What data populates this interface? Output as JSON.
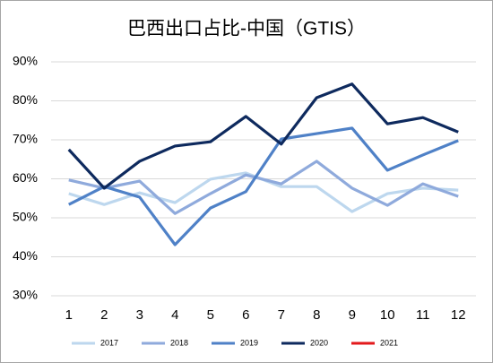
{
  "chart_data": {
    "type": "line",
    "title": "巴西出口占比-中国（GTIS）",
    "categories": [
      "1",
      "2",
      "3",
      "4",
      "5",
      "6",
      "7",
      "8",
      "9",
      "10",
      "11",
      "12"
    ],
    "series": [
      {
        "name": "2017",
        "color": "#bdd7ee",
        "values": [
          56.2,
          53.4,
          56.4,
          53.9,
          59.9,
          61.5,
          58,
          58,
          51.6,
          56.2,
          57.6,
          57.1
        ]
      },
      {
        "name": "2018",
        "color": "#8faadc",
        "values": [
          59.7,
          57.6,
          59.4,
          51.1,
          56.2,
          61,
          58.7,
          64.5,
          57.6,
          53.2,
          58.7,
          55.5
        ]
      },
      {
        "name": "2019",
        "color": "#4f81c7",
        "values": [
          53.4,
          58,
          55.3,
          43.1,
          52.5,
          56.7,
          70.2,
          71.6,
          73,
          62.2,
          66.1,
          69.8
        ]
      },
      {
        "name": "2020",
        "color": "#0e2a5e",
        "values": [
          67.5,
          57.6,
          64.5,
          68.4,
          69.5,
          76,
          68.9,
          80.8,
          84.3,
          74.1,
          75.7,
          72
        ]
      },
      {
        "name": "2021",
        "color": "#e31a1c",
        "values": [
          null,
          null,
          null,
          null,
          null,
          null,
          null,
          null,
          null,
          null,
          null,
          null
        ]
      }
    ],
    "ylim": [
      30,
      90
    ],
    "yticks": [
      {
        "value": 30,
        "label": "30%"
      },
      {
        "value": 40,
        "label": "40%"
      },
      {
        "value": 50,
        "label": "50%"
      },
      {
        "value": 60,
        "label": "60%"
      },
      {
        "value": 70,
        "label": "70%"
      },
      {
        "value": 80,
        "label": "80%"
      },
      {
        "value": 90,
        "label": "90%"
      }
    ],
    "grid": true,
    "legend": "bottom"
  }
}
